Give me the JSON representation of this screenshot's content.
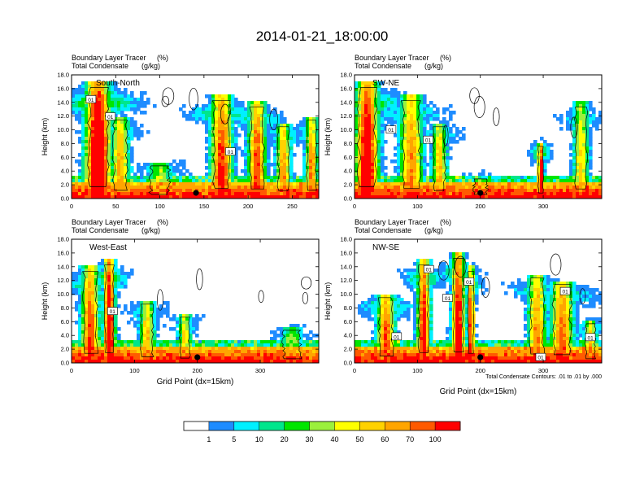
{
  "title": "2014-01-21_18:00:00",
  "panel_header": {
    "line1_label": "Boundary Layer Tracer",
    "line1_unit": "(%)",
    "line2_label": "Total Condensate",
    "line2_unit": "(g/kg)"
  },
  "ylabel": "Height (km)",
  "xlabel": "Grid Point (dx=15km)",
  "contour_note": "Total Condensate Contours: .01 to .01 by .000",
  "colorbar": {
    "colors": [
      "#ffffff",
      "#1e8cff",
      "#00f0ff",
      "#00e68c",
      "#00e600",
      "#9bf03c",
      "#ffff00",
      "#ffd200",
      "#ffa500",
      "#ff5a00",
      "#ff0000"
    ],
    "labels": [
      "1",
      "5",
      "10",
      "20",
      "30",
      "40",
      "50",
      "60",
      "70",
      "100"
    ]
  },
  "chart_data": [
    {
      "type": "heatmap",
      "name": "South-North",
      "ylim": [
        0,
        18
      ],
      "yticks": [
        "0.0",
        "2.0",
        "4.0",
        "6.0",
        "8.0",
        "10.0",
        "12.0",
        "14.0",
        "16.0",
        "18.0"
      ],
      "xlim": [
        0,
        280
      ],
      "xticks": [
        "0",
        "50",
        "100",
        "150",
        "200",
        "250"
      ],
      "marker_x": 141,
      "contour_labels": [
        {
          "text": "01",
          "x": 22,
          "y": 14.4
        },
        {
          "text": "01",
          "x": 44,
          "y": 11.9
        },
        {
          "text": "01",
          "x": 180,
          "y": 6.8
        }
      ]
    },
    {
      "type": "heatmap",
      "name": "SW-NE",
      "ylim": [
        0,
        18
      ],
      "yticks": [
        "0.0",
        "2.0",
        "4.0",
        "6.0",
        "8.0",
        "10.0",
        "12.0",
        "14.0",
        "16.0",
        "18.0"
      ],
      "xlim": [
        0,
        393
      ],
      "xticks": [
        "0",
        "100",
        "200",
        "300"
      ],
      "marker_x": 200,
      "contour_labels": [
        {
          "text": "01",
          "x": 58,
          "y": 10.0
        },
        {
          "text": "01",
          "x": 117,
          "y": 8.5
        }
      ]
    },
    {
      "type": "heatmap",
      "name": "West-East",
      "ylim": [
        0,
        18
      ],
      "yticks": [
        "0.0",
        "2.0",
        "4.0",
        "6.0",
        "8.0",
        "10.0",
        "12.0",
        "14.0",
        "16.0",
        "18.0"
      ],
      "xlim": [
        0,
        393
      ],
      "xticks": [
        "0",
        "100",
        "200",
        "300"
      ],
      "marker_x": 200,
      "contour_labels": [
        {
          "text": "01",
          "x": 65,
          "y": 7.5
        }
      ]
    },
    {
      "type": "heatmap",
      "name": "NW-SE",
      "ylim": [
        0,
        18
      ],
      "yticks": [
        "0.0",
        "2.0",
        "4.0",
        "6.0",
        "8.0",
        "10.0",
        "12.0",
        "14.0",
        "16.0",
        "18.0"
      ],
      "xlim": [
        0,
        393
      ],
      "xticks": [
        "0",
        "100",
        "200",
        "300"
      ],
      "marker_x": 200,
      "contour_labels": [
        {
          "text": "01",
          "x": 118,
          "y": 13.6
        },
        {
          "text": "01",
          "x": 182,
          "y": 11.8
        },
        {
          "text": "01",
          "x": 148,
          "y": 9.4
        },
        {
          "text": "01",
          "x": 335,
          "y": 10.4
        },
        {
          "text": "01",
          "x": 67,
          "y": 3.8
        },
        {
          "text": "01",
          "x": 296,
          "y": 0.8
        },
        {
          "text": "01",
          "x": 375,
          "y": 3.7
        }
      ]
    }
  ]
}
